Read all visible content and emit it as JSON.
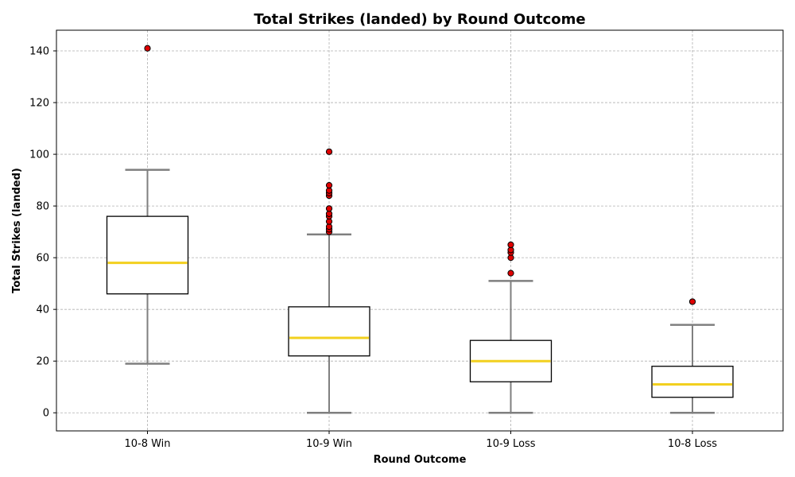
{
  "chart_data": {
    "type": "box",
    "title": "Total Strikes (landed) by Round Outcome",
    "xlabel": "Round Outcome",
    "ylabel": "Total Strikes (landed)",
    "ylim": [
      -7,
      148
    ],
    "yticks": [
      0,
      20,
      40,
      60,
      80,
      100,
      120,
      140
    ],
    "grid": true,
    "colors": {
      "box_edge": "#000000",
      "box_fill": "#ffffff",
      "median": "#f2d01f",
      "whisker": "#7f7f7f",
      "outlier_fill": "#e00000",
      "outlier_edge": "#000000"
    },
    "categories": [
      "10-8 Win",
      "10-9 Win",
      "10-9 Loss",
      "10-8 Loss"
    ],
    "boxes": [
      {
        "category": "10-8 Win",
        "whisker_low": 19,
        "q1": 46,
        "median": 58,
        "q3": 76,
        "whisker_high": 94,
        "outliers": [
          141
        ]
      },
      {
        "category": "10-9 Win",
        "whisker_low": 0,
        "q1": 22,
        "median": 29,
        "q3": 41,
        "whisker_high": 69,
        "outliers": [
          70,
          71,
          72,
          74,
          76,
          77,
          79,
          84,
          85,
          86,
          88,
          101
        ]
      },
      {
        "category": "10-9 Loss",
        "whisker_low": 0,
        "q1": 12,
        "median": 20,
        "q3": 28,
        "whisker_high": 51,
        "outliers": [
          54,
          60,
          62,
          63,
          65
        ]
      },
      {
        "category": "10-8 Loss",
        "whisker_low": 0,
        "q1": 6,
        "median": 11,
        "q3": 18,
        "whisker_high": 34,
        "outliers": [
          43
        ]
      }
    ]
  }
}
